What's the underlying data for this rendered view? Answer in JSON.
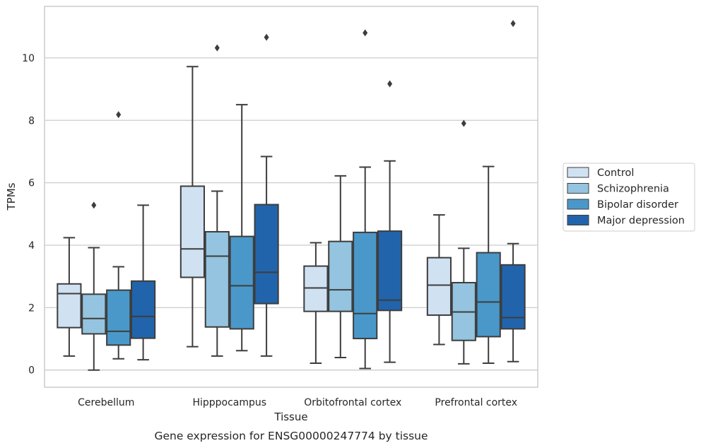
{
  "chart_data": {
    "type": "box",
    "caption": "Gene expression for ENSG00000247774 by tissue",
    "xlabel": "Tissue",
    "ylabel": "TPMs",
    "ylim": [
      -0.55,
      11.65
    ],
    "yticks": [
      0,
      2,
      4,
      6,
      8,
      10
    ],
    "grid": "horizontal",
    "legend_position": "right",
    "categories": [
      "Cerebellum",
      "Hipppocampus",
      "Orbitofrontal cortex",
      "Prefrontal cortex"
    ],
    "series": [
      {
        "name": "Control",
        "color": "#d0e1f2",
        "boxes": [
          {
            "whislo": 0.45,
            "q1": 1.36,
            "med": 2.45,
            "q3": 2.76,
            "whishi": 4.24,
            "fliers": []
          },
          {
            "whislo": 0.75,
            "q1": 2.97,
            "med": 3.88,
            "q3": 5.89,
            "whishi": 9.72,
            "fliers": []
          },
          {
            "whislo": 0.22,
            "q1": 1.88,
            "med": 2.63,
            "q3": 3.33,
            "whishi": 4.08,
            "fliers": []
          },
          {
            "whislo": 0.82,
            "q1": 1.76,
            "med": 2.72,
            "q3": 3.6,
            "whishi": 4.97,
            "fliers": []
          }
        ]
      },
      {
        "name": "Schizophrenia",
        "color": "#94c4df",
        "boxes": [
          {
            "whislo": 0.0,
            "q1": 1.16,
            "med": 1.65,
            "q3": 2.43,
            "whishi": 3.92,
            "fliers": [
              5.28
            ]
          },
          {
            "whislo": 0.45,
            "q1": 1.38,
            "med": 3.65,
            "q3": 4.43,
            "whishi": 5.73,
            "fliers": [
              10.32
            ]
          },
          {
            "whislo": 0.4,
            "q1": 1.88,
            "med": 2.57,
            "q3": 4.12,
            "whishi": 6.22,
            "fliers": []
          },
          {
            "whislo": 0.2,
            "q1": 0.95,
            "med": 1.86,
            "q3": 2.8,
            "whishi": 3.9,
            "fliers": [
              7.9
            ]
          }
        ]
      },
      {
        "name": "Bipolar disorder",
        "color": "#4a98c9",
        "boxes": [
          {
            "whislo": 0.36,
            "q1": 0.8,
            "med": 1.24,
            "q3": 2.56,
            "whishi": 3.31,
            "fliers": [
              8.18
            ]
          },
          {
            "whislo": 0.62,
            "q1": 1.32,
            "med": 2.7,
            "q3": 4.28,
            "whishi": 8.5,
            "fliers": []
          },
          {
            "whislo": 0.05,
            "q1": 1.01,
            "med": 1.81,
            "q3": 4.41,
            "whishi": 6.5,
            "fliers": [
              10.8
            ]
          },
          {
            "whislo": 0.22,
            "q1": 1.07,
            "med": 2.18,
            "q3": 3.76,
            "whishi": 6.52,
            "fliers": []
          }
        ]
      },
      {
        "name": "Major depression",
        "color": "#2164ab",
        "boxes": [
          {
            "whislo": 0.33,
            "q1": 1.02,
            "med": 1.72,
            "q3": 2.85,
            "whishi": 5.28,
            "fliers": []
          },
          {
            "whislo": 0.45,
            "q1": 2.13,
            "med": 3.13,
            "q3": 5.3,
            "whishi": 6.84,
            "fliers": [
              10.66
            ]
          },
          {
            "whislo": 0.25,
            "q1": 1.91,
            "med": 2.24,
            "q3": 4.45,
            "whishi": 6.7,
            "fliers": [
              9.17
            ]
          },
          {
            "whislo": 0.27,
            "q1": 1.32,
            "med": 1.68,
            "q3": 3.37,
            "whishi": 4.05,
            "fliers": [
              11.1
            ]
          }
        ]
      }
    ]
  }
}
